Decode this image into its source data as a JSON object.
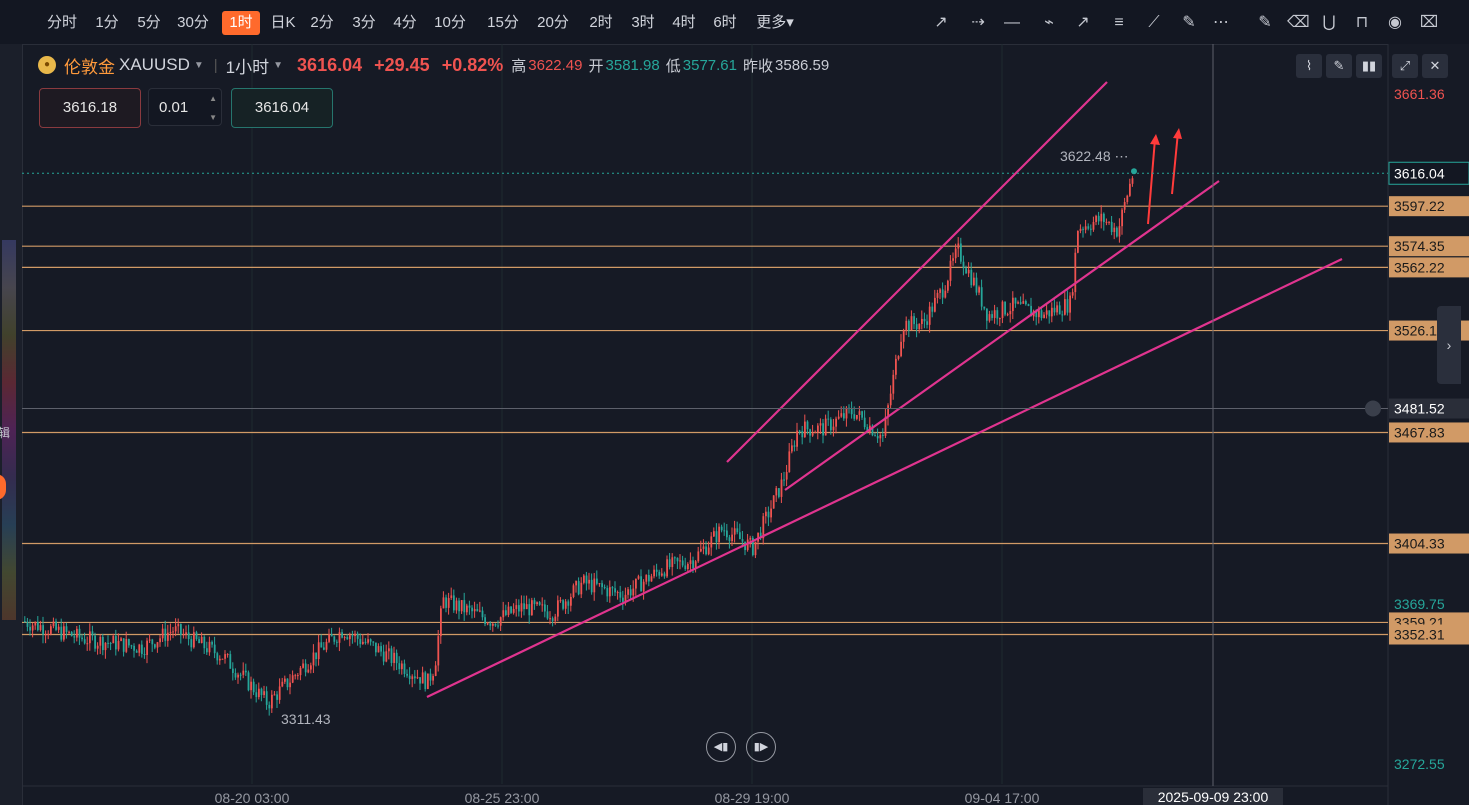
{
  "timeframes": [
    "分时",
    "1分",
    "5分",
    "30分",
    "1时",
    "日K",
    "2分",
    "3分",
    "4分",
    "10分",
    "15分",
    "20分",
    "2时",
    "3时",
    "4时",
    "6时",
    "更多"
  ],
  "active_timeframe": "1时",
  "symbol": {
    "name": "伦敦金",
    "code": "XAUUSD",
    "interval": "1小时",
    "last": "3616.04",
    "change": "+29.45",
    "change_pct": "+0.82%",
    "high_label": "高",
    "high": "3622.49",
    "open_label": "开",
    "open": "3581.98",
    "low_label": "低",
    "low": "3577.61",
    "prev_label": "昨收",
    "prev": "3586.59"
  },
  "order": {
    "sell": "3616.18",
    "qty": "0.01",
    "buy": "3616.04"
  },
  "left_text": "辑",
  "colors": {
    "bg": "#161a25",
    "up": "#ef5350",
    "down": "#26a69a",
    "level": "#d19a66",
    "trend": "#e0348f",
    "accent": "#ff6a2c"
  },
  "price_axis": {
    "top": "3661.36",
    "bottom": "3272.55",
    "mid_label": "3369.75",
    "crosshair": "3481.52",
    "current": "3616.04"
  },
  "levels": [
    {
      "price": "3597.22",
      "value": 3597.22
    },
    {
      "price": "3574.35",
      "value": 3574.35
    },
    {
      "price": "3562.22",
      "value": 3562.22
    },
    {
      "price": "3526.11",
      "value": 3526.11
    },
    {
      "price": "3467.83",
      "value": 3467.83
    },
    {
      "price": "3404.33",
      "value": 3404.33
    },
    {
      "price": "3359.21",
      "value": 3359.21
    },
    {
      "price": "3352.31",
      "value": 3352.31
    }
  ],
  "annotations": {
    "high": "3622.48",
    "low": "3311.43"
  },
  "time_axis": [
    "08-20 03:00",
    "08-25 23:00",
    "08-29 19:00",
    "09-04 17:00"
  ],
  "crosshair_time": "2025-09-09 23:00",
  "chart_data": {
    "type": "candlestick",
    "ylim": [
      3272.55,
      3661.36
    ],
    "x": [
      "08-20 03:00",
      "08-25 23:00",
      "08-29 19:00",
      "09-04 17:00"
    ],
    "high": 3622.48,
    "low": 3311.43,
    "last": 3616.04
  }
}
